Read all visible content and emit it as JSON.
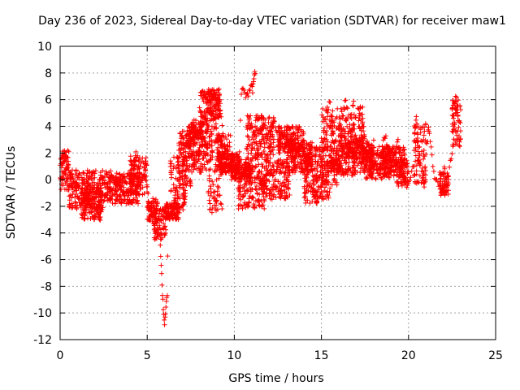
{
  "chart_data": {
    "type": "scatter",
    "title": "Day 236 of 2023, Sidereal Day-to-day VTEC variation (SDTVAR) for receiver maw1",
    "xlabel": "GPS time / hours",
    "ylabel": "SDTVAR / TECUs",
    "xlim": [
      0,
      25
    ],
    "ylim": [
      -12,
      10
    ],
    "xticks": [
      0,
      5,
      10,
      15,
      20,
      25
    ],
    "yticks": [
      -12,
      -10,
      -8,
      -6,
      -4,
      -2,
      0,
      2,
      4,
      6,
      8,
      10
    ],
    "xtick_labels": [
      "0",
      "5",
      "10",
      "15",
      "20",
      "25"
    ],
    "ytick_labels": [
      "-12",
      "-10",
      "-8",
      "-6",
      "-4",
      "-2",
      "0",
      "2",
      "4",
      "6",
      "8",
      "10"
    ],
    "grid": true,
    "marker": "+",
    "color": "#ff0000",
    "series": [
      {
        "name": "maw1",
        "points": [
          [
            0.0,
            1.0
          ],
          [
            0.05,
            -0.8
          ],
          [
            0.1,
            0.5
          ],
          [
            0.15,
            1.5
          ],
          [
            0.2,
            1.2
          ],
          [
            0.25,
            2.0
          ],
          [
            0.3,
            1.3
          ],
          [
            0.35,
            0.8
          ],
          [
            0.4,
            1.0
          ],
          [
            0.5,
            0.5
          ],
          [
            0.6,
            0.2
          ],
          [
            0.7,
            0.6
          ],
          [
            0.8,
            -0.3
          ],
          [
            0.9,
            -0.8
          ],
          [
            1.0,
            -1.2
          ],
          [
            1.1,
            -1.6
          ],
          [
            1.2,
            -1.9
          ],
          [
            1.3,
            -1.5
          ],
          [
            1.4,
            -1.2
          ],
          [
            1.5,
            -0.9
          ],
          [
            1.6,
            -1.4
          ],
          [
            1.7,
            -1.8
          ],
          [
            1.8,
            -2.0
          ],
          [
            1.9,
            -1.5
          ],
          [
            2.0,
            -1.0
          ],
          [
            2.1,
            -0.7
          ],
          [
            2.2,
            -1.2
          ],
          [
            2.25,
            -2.5
          ],
          [
            2.3,
            -3.0
          ],
          [
            2.4,
            -2.2
          ],
          [
            2.5,
            -1.5
          ],
          [
            2.6,
            -1.2
          ],
          [
            2.7,
            -0.6
          ],
          [
            2.8,
            0.2
          ],
          [
            2.9,
            0.5
          ],
          [
            3.0,
            0.2
          ],
          [
            3.1,
            -0.3
          ],
          [
            3.2,
            -0.6
          ],
          [
            3.3,
            -0.4
          ],
          [
            3.4,
            -0.1
          ],
          [
            3.5,
            -0.5
          ],
          [
            3.6,
            -0.8
          ],
          [
            3.7,
            -0.4
          ],
          [
            3.8,
            0.0
          ],
          [
            3.9,
            0.4
          ],
          [
            4.0,
            0.2
          ],
          [
            4.1,
            0.0
          ],
          [
            4.2,
            0.6
          ],
          [
            4.3,
            1.5
          ],
          [
            4.35,
            2.0
          ],
          [
            4.4,
            1.0
          ],
          [
            4.5,
            0.3
          ],
          [
            4.6,
            -0.2
          ],
          [
            4.7,
            0.0
          ],
          [
            4.8,
            0.2
          ],
          [
            4.9,
            0.1
          ],
          [
            5.0,
            -0.5
          ],
          [
            5.1,
            -1.5
          ],
          [
            5.2,
            -2.5
          ],
          [
            5.3,
            -3.3
          ],
          [
            5.4,
            -3.8
          ],
          [
            5.5,
            -4.3
          ],
          [
            5.6,
            -4.0
          ],
          [
            5.7,
            -3.5
          ],
          [
            5.75,
            -5.0
          ],
          [
            5.8,
            -6.5
          ],
          [
            5.85,
            -8.0
          ],
          [
            5.9,
            -9.0
          ],
          [
            5.95,
            -10.2
          ],
          [
            6.0,
            -10.8
          ],
          [
            6.05,
            -10.0
          ],
          [
            6.1,
            -9.0
          ],
          [
            6.15,
            -8.5
          ],
          [
            6.2,
            -3.0
          ],
          [
            6.3,
            -2.8
          ],
          [
            6.4,
            -2.5
          ],
          [
            6.5,
            -2.0
          ],
          [
            6.6,
            -1.5
          ],
          [
            6.7,
            -0.5
          ],
          [
            6.8,
            1.0
          ],
          [
            6.9,
            2.5
          ],
          [
            7.0,
            3.5
          ],
          [
            7.1,
            3.0
          ],
          [
            7.2,
            2.0
          ],
          [
            7.3,
            1.0
          ],
          [
            7.4,
            2.5
          ],
          [
            7.5,
            3.8
          ],
          [
            7.6,
            4.0
          ],
          [
            7.7,
            3.5
          ],
          [
            7.8,
            2.0
          ],
          [
            7.9,
            1.5
          ],
          [
            8.0,
            2.5
          ],
          [
            8.1,
            3.5
          ],
          [
            8.2,
            4.5
          ],
          [
            8.3,
            5.0
          ],
          [
            8.4,
            4.5
          ],
          [
            8.5,
            6.5
          ],
          [
            8.6,
            6.8
          ],
          [
            8.7,
            6.5
          ],
          [
            8.8,
            6.2
          ],
          [
            8.9,
            6.5
          ],
          [
            9.0,
            6.0
          ],
          [
            9.1,
            5.5
          ],
          [
            9.2,
            5.0
          ],
          [
            9.3,
            4.0
          ],
          [
            9.4,
            3.0
          ],
          [
            9.5,
            2.5
          ],
          [
            9.6,
            2.0
          ],
          [
            9.7,
            1.5
          ],
          [
            9.8,
            1.0
          ],
          [
            9.9,
            0.5
          ],
          [
            10.0,
            0.6
          ],
          [
            10.1,
            1.0
          ],
          [
            10.2,
            1.5
          ],
          [
            10.3,
            2.0
          ],
          [
            10.4,
            6.5
          ],
          [
            10.5,
            6.8
          ],
          [
            10.6,
            6.5
          ],
          [
            10.7,
            6.2
          ],
          [
            10.8,
            6.5
          ],
          [
            10.9,
            6.8
          ],
          [
            11.0,
            7.0
          ],
          [
            11.05,
            6.5
          ],
          [
            11.1,
            7.5
          ],
          [
            11.15,
            8.0
          ],
          [
            11.2,
            7.8
          ],
          [
            11.3,
            2.0
          ],
          [
            11.4,
            1.0
          ],
          [
            11.5,
            0.0
          ],
          [
            11.6,
            -0.5
          ],
          [
            11.7,
            -0.8
          ],
          [
            11.8,
            0.5
          ],
          [
            11.9,
            2.0
          ],
          [
            12.0,
            3.0
          ],
          [
            12.1,
            3.8
          ],
          [
            12.2,
            4.2
          ],
          [
            12.3,
            4.5
          ],
          [
            12.4,
            3.8
          ],
          [
            12.5,
            3.0
          ],
          [
            12.6,
            2.5
          ],
          [
            12.7,
            3.5
          ],
          [
            12.8,
            3.2
          ],
          [
            12.9,
            2.8
          ],
          [
            13.0,
            2.5
          ],
          [
            13.1,
            2.8
          ],
          [
            13.2,
            3.0
          ],
          [
            13.3,
            2.2
          ],
          [
            13.4,
            1.5
          ],
          [
            13.5,
            1.0
          ],
          [
            13.6,
            2.0
          ],
          [
            13.7,
            2.5
          ],
          [
            13.8,
            1.8
          ],
          [
            13.9,
            1.0
          ],
          [
            14.0,
            0.5
          ],
          [
            14.1,
            0.0
          ],
          [
            14.2,
            1.0
          ],
          [
            14.3,
            2.0
          ],
          [
            14.4,
            1.5
          ],
          [
            14.5,
            0.5
          ],
          [
            14.6,
            -1.0
          ],
          [
            14.7,
            -2.0
          ],
          [
            14.8,
            -1.5
          ],
          [
            14.9,
            0.0
          ],
          [
            15.0,
            1.0
          ],
          [
            15.1,
            2.0
          ],
          [
            15.2,
            3.0
          ],
          [
            15.3,
            4.0
          ],
          [
            15.4,
            5.5
          ],
          [
            15.5,
            6.0
          ],
          [
            15.6,
            4.0
          ],
          [
            15.7,
            2.0
          ],
          [
            15.8,
            1.0
          ],
          [
            15.9,
            0.5
          ],
          [
            16.0,
            2.0
          ],
          [
            16.1,
            3.5
          ],
          [
            16.2,
            4.5
          ],
          [
            16.3,
            5.5
          ],
          [
            16.4,
            6.0
          ],
          [
            16.5,
            4.5
          ],
          [
            16.6,
            3.0
          ],
          [
            16.7,
            2.0
          ],
          [
            16.8,
            5.5
          ],
          [
            16.85,
            6.0
          ],
          [
            16.9,
            4.0
          ],
          [
            17.0,
            3.0
          ],
          [
            17.1,
            2.5
          ],
          [
            17.2,
            2.0
          ],
          [
            17.3,
            1.5
          ],
          [
            17.4,
            2.0
          ],
          [
            17.5,
            2.5
          ],
          [
            17.6,
            2.0
          ],
          [
            17.7,
            1.5
          ],
          [
            17.8,
            1.0
          ],
          [
            17.9,
            0.5
          ],
          [
            18.0,
            1.0
          ],
          [
            18.1,
            1.5
          ],
          [
            18.2,
            1.0
          ],
          [
            18.3,
            0.5
          ],
          [
            18.4,
            1.5
          ],
          [
            18.5,
            2.5
          ],
          [
            18.6,
            3.0
          ],
          [
            18.7,
            3.5
          ],
          [
            18.8,
            2.0
          ],
          [
            18.9,
            1.5
          ],
          [
            19.0,
            1.0
          ],
          [
            19.1,
            1.5
          ],
          [
            19.2,
            2.0
          ],
          [
            19.3,
            2.5
          ],
          [
            19.4,
            3.0
          ],
          [
            19.5,
            2.0
          ],
          [
            19.6,
            1.0
          ],
          [
            19.7,
            0.5
          ],
          [
            19.8,
            0.0
          ],
          [
            19.9,
            -0.5
          ],
          [
            20.0,
            -0.3
          ],
          [
            20.3,
            1.0
          ],
          [
            20.35,
            3.5
          ],
          [
            20.4,
            4.0
          ],
          [
            20.45,
            4.5
          ],
          [
            20.5,
            3.0
          ],
          [
            20.55,
            2.0
          ],
          [
            20.6,
            1.5
          ],
          [
            20.7,
            1.0
          ],
          [
            20.8,
            0.5
          ],
          [
            20.85,
            0.0
          ],
          [
            20.9,
            -0.3
          ],
          [
            21.0,
            2.0
          ],
          [
            21.1,
            3.0
          ],
          [
            21.15,
            4.0
          ],
          [
            21.2,
            3.5
          ],
          [
            21.3,
            2.5
          ],
          [
            21.4,
            1.0
          ],
          [
            21.5,
            0.0
          ],
          [
            21.8,
            -0.5
          ],
          [
            21.9,
            -1.0
          ],
          [
            21.95,
            -0.8
          ],
          [
            22.0,
            0.0
          ],
          [
            22.05,
            0.8
          ],
          [
            22.1,
            0.5
          ],
          [
            22.15,
            -0.5
          ],
          [
            22.2,
            -1.0
          ],
          [
            22.3,
            0.5
          ],
          [
            22.4,
            1.5
          ],
          [
            22.5,
            2.0
          ],
          [
            22.6,
            3.0
          ],
          [
            22.7,
            5.0
          ],
          [
            22.75,
            6.0
          ],
          [
            22.8,
            5.5
          ],
          [
            22.85,
            4.5
          ],
          [
            22.9,
            3.5
          ],
          [
            22.95,
            2.5
          ]
        ],
        "ranges": [
          [
            0.0,
            0.5,
            -0.8,
            2.2
          ],
          [
            0.5,
            2.5,
            -2.2,
            0.8
          ],
          [
            1.2,
            2.4,
            -3.0,
            -0.5
          ],
          [
            2.5,
            3.0,
            -1.6,
            0.6
          ],
          [
            3.0,
            4.5,
            -1.8,
            0.5
          ],
          [
            4.0,
            5.0,
            -1.2,
            1.8
          ],
          [
            5.0,
            5.6,
            -3.2,
            -1.4
          ],
          [
            5.4,
            6.1,
            -4.5,
            -2.2
          ],
          [
            6.0,
            6.8,
            -3.0,
            -1.8
          ],
          [
            6.3,
            7.2,
            -2.5,
            1.8
          ],
          [
            6.8,
            7.5,
            -0.5,
            3.8
          ],
          [
            7.2,
            8.0,
            1.5,
            4.0
          ],
          [
            7.5,
            8.5,
            0.5,
            4.5
          ],
          [
            8.0,
            9.0,
            2.5,
            6.8
          ],
          [
            8.5,
            9.3,
            -2.5,
            3.0
          ],
          [
            8.4,
            9.2,
            4.5,
            6.8
          ],
          [
            9.0,
            9.8,
            0.5,
            3.5
          ],
          [
            9.2,
            10.3,
            0.5,
            2.0
          ],
          [
            9.8,
            11.0,
            0.0,
            1.5
          ],
          [
            10.2,
            11.8,
            -2.2,
            1.2
          ],
          [
            10.7,
            12.3,
            1.5,
            4.8
          ],
          [
            11.8,
            13.2,
            -1.5,
            1.5
          ],
          [
            12.5,
            14.0,
            2.0,
            4.0
          ],
          [
            13.0,
            14.5,
            0.5,
            2.8
          ],
          [
            14.0,
            14.8,
            -1.8,
            2.0
          ],
          [
            14.6,
            15.5,
            -1.5,
            2.5
          ],
          [
            15.0,
            16.0,
            -0.5,
            5.5
          ],
          [
            15.5,
            17.0,
            0.3,
            3.0
          ],
          [
            16.0,
            17.5,
            1.5,
            5.5
          ],
          [
            16.8,
            18.0,
            0.5,
            3.0
          ],
          [
            17.5,
            19.0,
            0.0,
            2.5
          ],
          [
            18.5,
            19.8,
            0.2,
            2.5
          ],
          [
            19.3,
            20.0,
            -0.5,
            1.5
          ],
          [
            20.3,
            21.0,
            -0.3,
            4.2
          ],
          [
            21.8,
            22.3,
            -1.2,
            0.6
          ],
          [
            22.5,
            23.0,
            2.5,
            6.3
          ]
        ]
      }
    ]
  }
}
